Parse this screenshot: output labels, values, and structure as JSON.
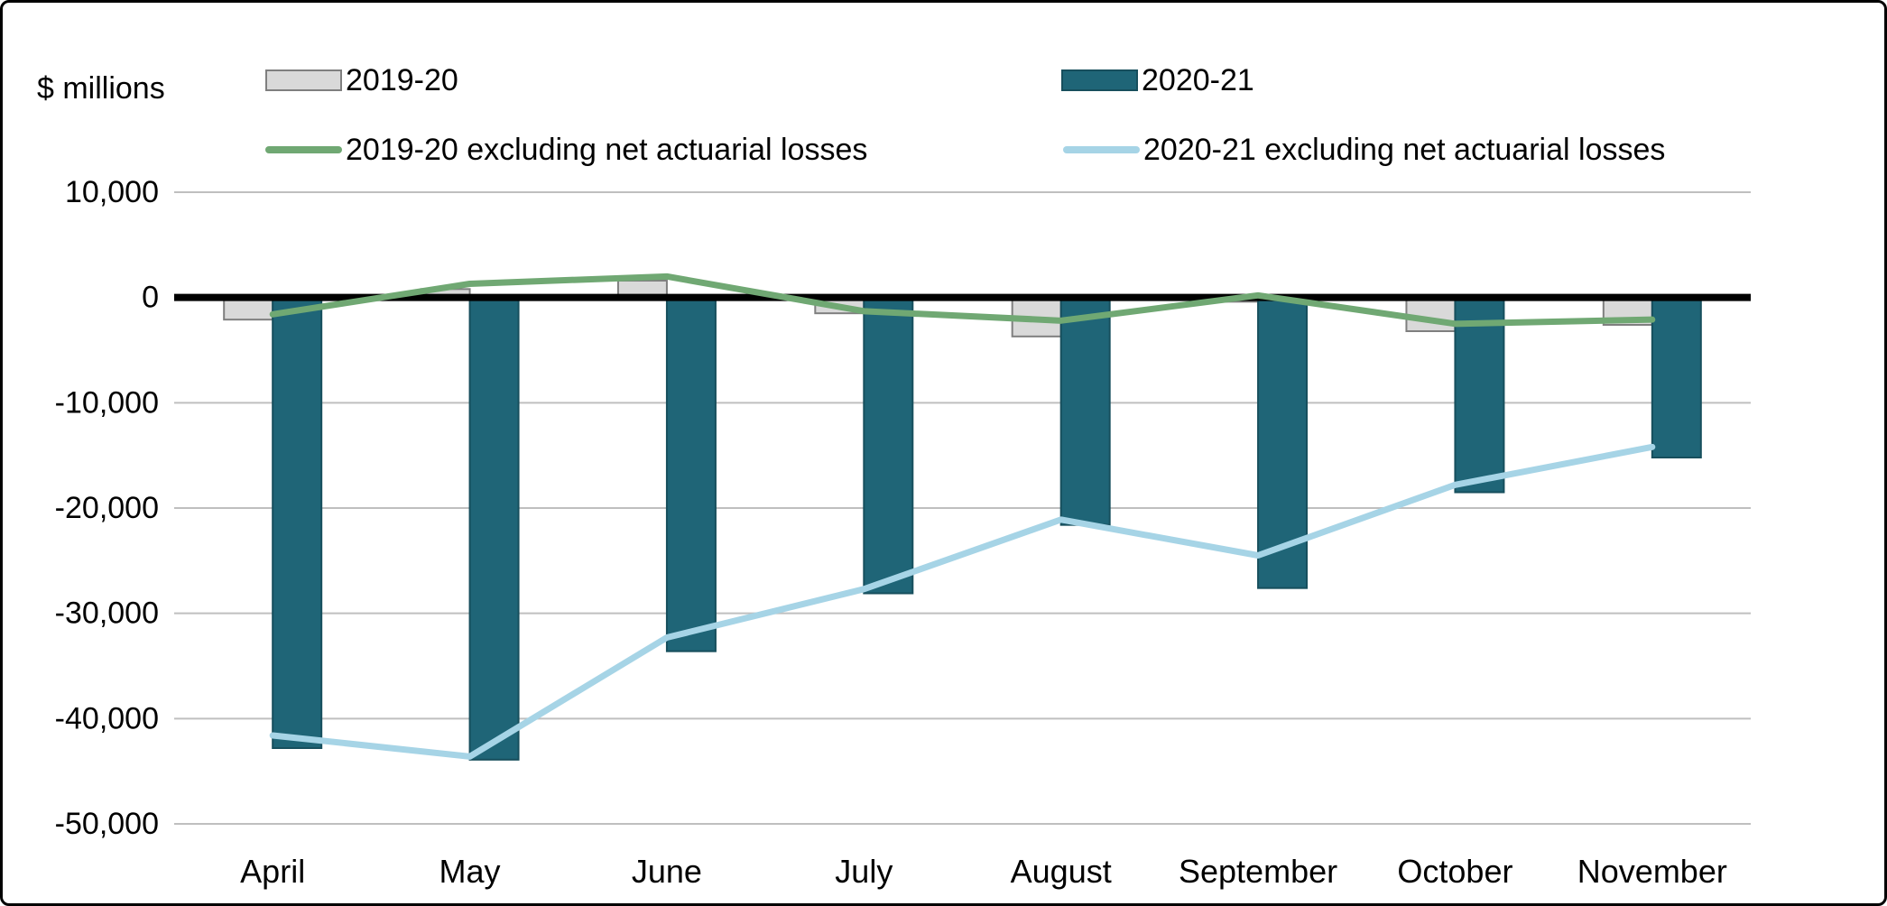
{
  "chart_data": {
    "type": "bar",
    "subtype": "clustered-bars-with-lines",
    "title": "",
    "units_label": "$ millions",
    "categories": [
      "April",
      "May",
      "June",
      "July",
      "August",
      "September",
      "October",
      "November"
    ],
    "series": [
      {
        "name": "2019-20",
        "type": "bar",
        "color": "#d9d9d9",
        "border": "#7f7f7f",
        "values": [
          -2100,
          800,
          1600,
          -1500,
          -3700,
          -400,
          -3200,
          -2600
        ]
      },
      {
        "name": "2020-21",
        "type": "bar",
        "color": "#1f6577",
        "border": "#174f5d",
        "values": [
          -42800,
          -43900,
          -33600,
          -28100,
          -21600,
          -27600,
          -18500,
          -15200
        ]
      },
      {
        "name": "2019-20 excluding net actuarial losses",
        "type": "line",
        "color": "#70a873",
        "values": [
          -1600,
          1300,
          2000,
          -1300,
          -2200,
          200,
          -2500,
          -2100
        ]
      },
      {
        "name": "2020-21 excluding net actuarial losses",
        "type": "line",
        "color": "#a6d4e6",
        "values": [
          -41600,
          -43600,
          -32300,
          -27700,
          -21100,
          -24500,
          -17800,
          -14200
        ]
      }
    ],
    "ylim": [
      -50000,
      10000
    ],
    "ytick_step": 10000,
    "ytick_labels": [
      "10,000",
      "0",
      "-10,000",
      "-20,000",
      "-30,000",
      "-40,000",
      "-50,000"
    ],
    "grid": true,
    "gridline_color": "#bfbfbf",
    "zero_line_color": "#000000",
    "legend_position": "top"
  }
}
